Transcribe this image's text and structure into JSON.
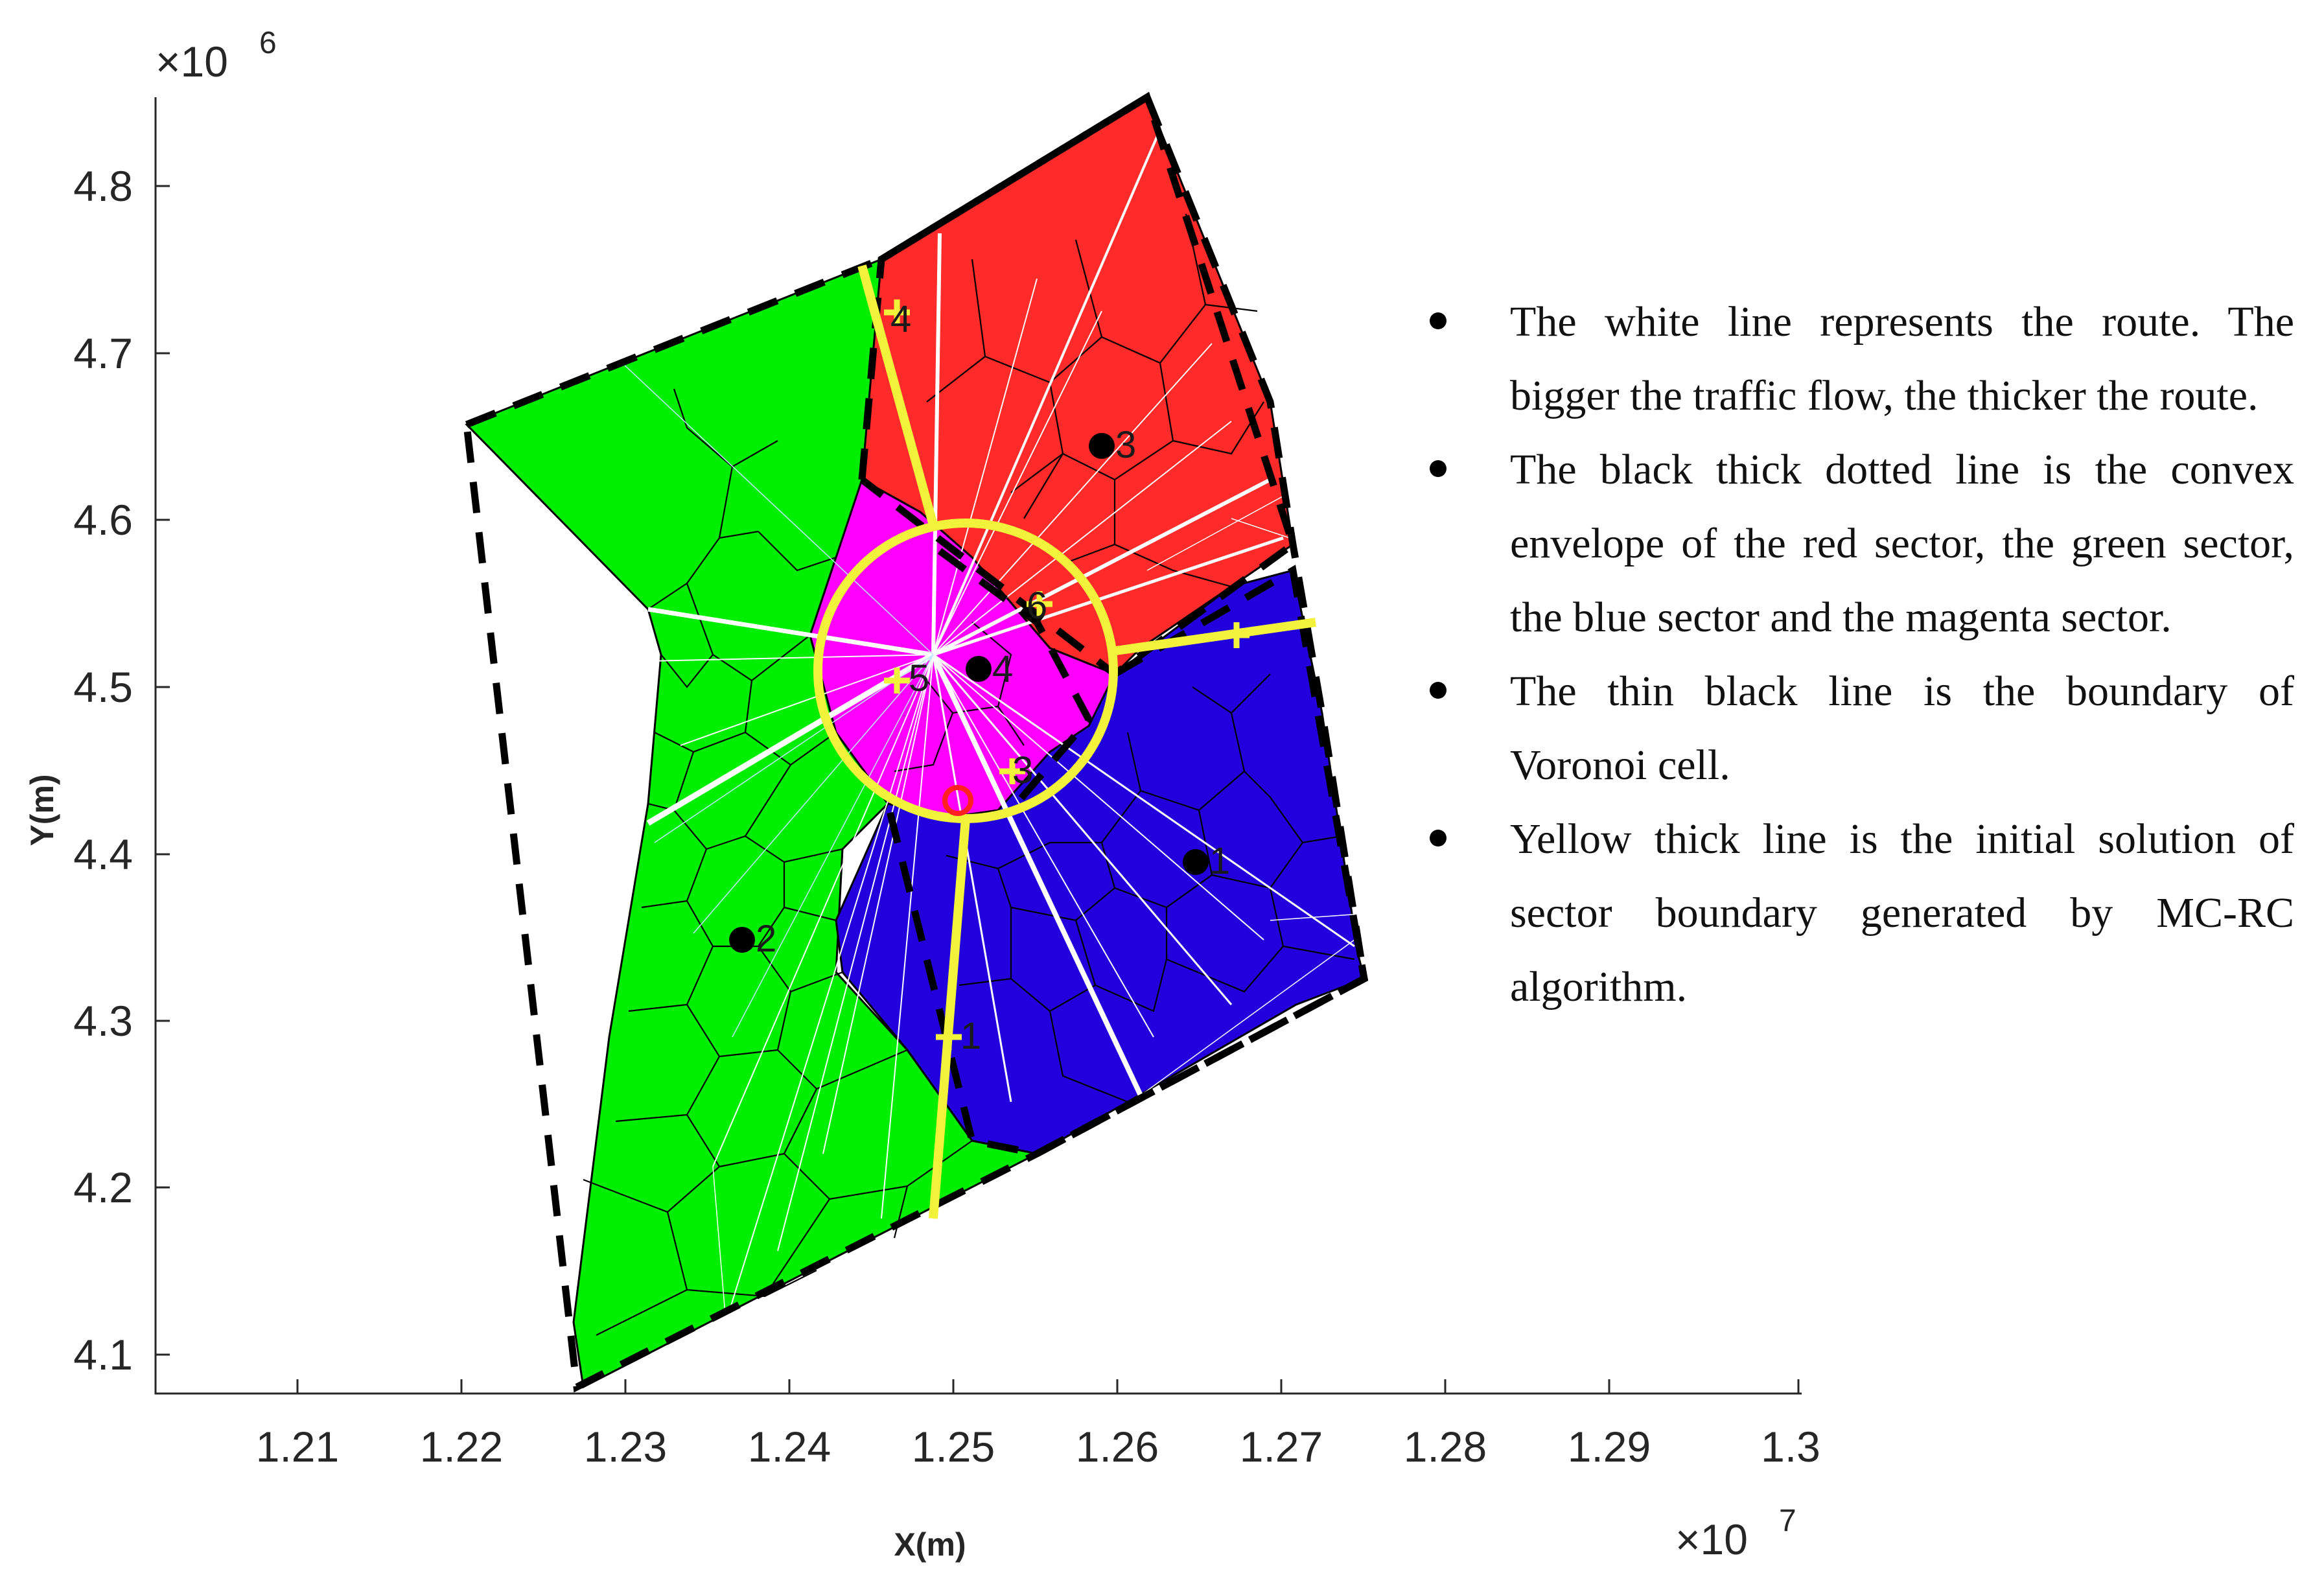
{
  "axes": {
    "x_title": "X(m)",
    "y_title": "Y(m)",
    "x_exponent": "×10",
    "x_exponent_power": "7",
    "y_exponent": "×10",
    "y_exponent_power": "6",
    "x_ticks": [
      "1.21",
      "1.22",
      "1.23",
      "1.24",
      "1.25",
      "1.26",
      "1.27",
      "1.28",
      "1.29",
      "1.3"
    ],
    "y_ticks": [
      "4.1",
      "4.2",
      "4.3",
      "4.4",
      "4.5",
      "4.6",
      "4.7",
      "4.8"
    ]
  },
  "colors": {
    "green_sector": "#00ee00",
    "red_sector": "#ff2a2a",
    "blue_sector": "#2200dd",
    "magenta_sector": "#ff00ff",
    "route": "#ffffff",
    "initial_boundary": "#f2f23a",
    "convex_envelope": "#000000"
  },
  "markers": {
    "sector_centers": [
      "1",
      "2",
      "3",
      "4"
    ],
    "boundary_points": [
      "1",
      "3",
      "4",
      "5",
      "6"
    ]
  },
  "legend": [
    "The white line represents the route. The bigger the traffic flow, the thicker the route.",
    "The black thick dotted line is the convex envelope of the red sector, the green sector, the blue sector and the magenta sector.",
    "The thin black line is the boundary of Voronoi cell.",
    "Yellow thick line is the initial solution of sector boundary generated by MC-RC algorithm."
  ]
}
